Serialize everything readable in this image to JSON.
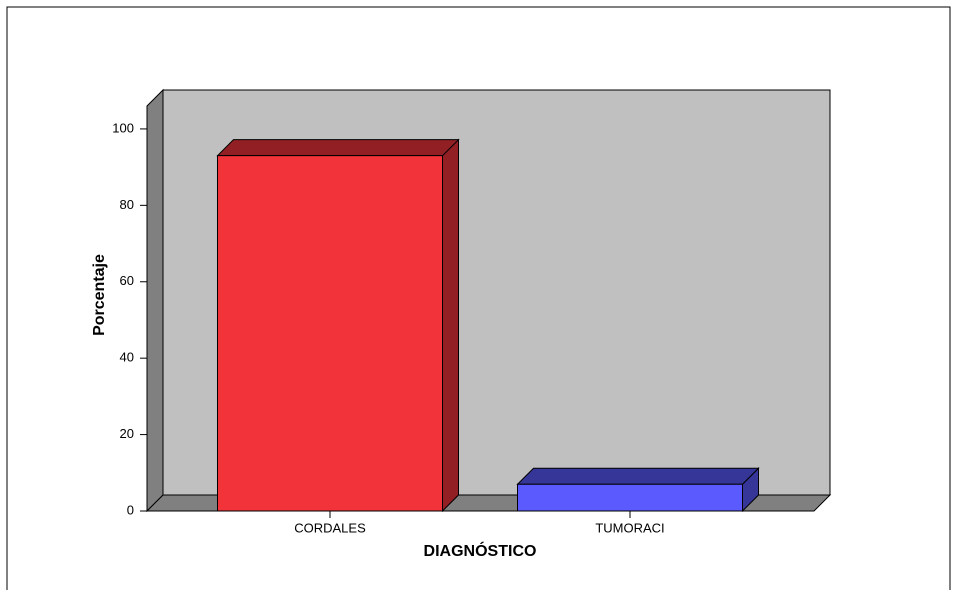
{
  "chart_data": {
    "type": "bar3d",
    "x_label": "DIAGNÓSTICO",
    "y_label": "Porcentaje",
    "categories": [
      "CORDALES",
      "TUMORACI"
    ],
    "values": [
      93,
      7
    ],
    "colors": [
      "#f2333a",
      "#5a5aff"
    ],
    "ylim": [
      0,
      106
    ],
    "yticks": [
      0,
      20,
      40,
      60,
      80,
      100
    ]
  }
}
